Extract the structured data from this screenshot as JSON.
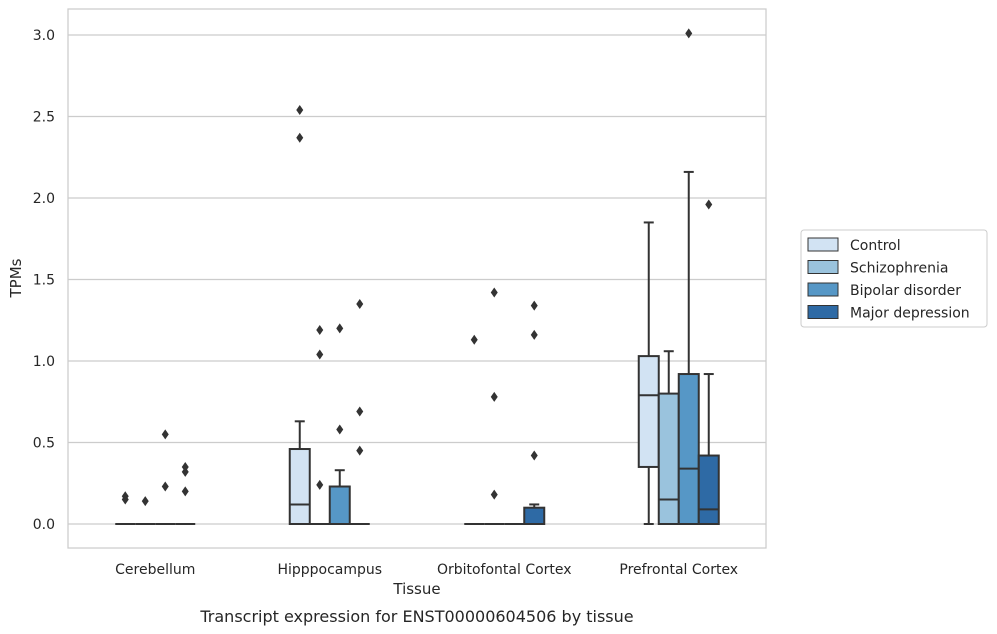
{
  "chart_data": {
    "type": "box",
    "title": "",
    "caption": "Transcript expression for ENST00000604506 by tissue",
    "xlabel": "Tissue",
    "ylabel": "TPMs",
    "ylim": [
      -0.15,
      3.15
    ],
    "yticks": [
      0.0,
      0.5,
      1.0,
      1.5,
      2.0,
      2.5,
      3.0
    ],
    "ytick_labels": [
      "0.0",
      "0.5",
      "1.0",
      "1.5",
      "2.0",
      "2.5",
      "3.0"
    ],
    "grid": "horizontal",
    "legend_position": "right",
    "categories": [
      "Cerebellum",
      "Hipppocampus",
      "Orbitofontal Cortex",
      "Prefrontal Cortex"
    ],
    "series": [
      {
        "name": "Control",
        "color": "#d2e3f3",
        "boxes": [
          {
            "q1": 0,
            "median": 0,
            "q3": 0,
            "whisker_low": 0,
            "whisker_high": 0,
            "outliers": [
              0.15,
              0.17
            ]
          },
          {
            "q1": 0,
            "median": 0.12,
            "q3": 0.46,
            "whisker_low": 0,
            "whisker_high": 0.63,
            "outliers": [
              2.37,
              2.54
            ]
          },
          {
            "q1": 0,
            "median": 0,
            "q3": 0,
            "whisker_low": 0,
            "whisker_high": 0,
            "outliers": [
              1.13
            ]
          },
          {
            "q1": 0.35,
            "median": 0.79,
            "q3": 1.03,
            "whisker_low": 0,
            "whisker_high": 1.85,
            "outliers": []
          }
        ]
      },
      {
        "name": "Schizophrenia",
        "color": "#9ac3dd",
        "boxes": [
          {
            "q1": 0,
            "median": 0,
            "q3": 0,
            "whisker_low": 0,
            "whisker_high": 0,
            "outliers": [
              0.14
            ]
          },
          {
            "q1": 0,
            "median": 0,
            "q3": 0,
            "whisker_low": 0,
            "whisker_high": 0,
            "outliers": [
              0.24,
              1.04,
              1.19
            ]
          },
          {
            "q1": 0,
            "median": 0,
            "q3": 0,
            "whisker_low": 0,
            "whisker_high": 0,
            "outliers": [
              0.18,
              0.78,
              1.42
            ]
          },
          {
            "q1": 0,
            "median": 0.15,
            "q3": 0.8,
            "whisker_low": 0,
            "whisker_high": 1.06,
            "outliers": []
          }
        ]
      },
      {
        "name": "Bipolar disorder",
        "color": "#5697c6",
        "boxes": [
          {
            "q1": 0,
            "median": 0,
            "q3": 0,
            "whisker_low": 0,
            "whisker_high": 0,
            "outliers": [
              0.23,
              0.55
            ]
          },
          {
            "q1": 0,
            "median": 0,
            "q3": 0.23,
            "whisker_low": 0,
            "whisker_high": 0.33,
            "outliers": [
              0.58,
              1.2
            ]
          },
          {
            "q1": 0,
            "median": 0,
            "q3": 0,
            "whisker_low": 0,
            "whisker_high": 0,
            "outliers": []
          },
          {
            "q1": 0,
            "median": 0.34,
            "q3": 0.92,
            "whisker_low": 0,
            "whisker_high": 2.16,
            "outliers": [
              3.01
            ]
          }
        ]
      },
      {
        "name": "Major depression",
        "color": "#2e6aa5",
        "boxes": [
          {
            "q1": 0,
            "median": 0,
            "q3": 0,
            "whisker_low": 0,
            "whisker_high": 0,
            "outliers": [
              0.2,
              0.32,
              0.35
            ]
          },
          {
            "q1": 0,
            "median": 0,
            "q3": 0,
            "whisker_low": 0,
            "whisker_high": 0,
            "outliers": [
              0.45,
              0.69,
              1.35
            ]
          },
          {
            "q1": 0,
            "median": 0,
            "q3": 0.1,
            "whisker_low": 0,
            "whisker_high": 0.12,
            "outliers": [
              0.42,
              1.16,
              1.34
            ]
          },
          {
            "q1": 0,
            "median": 0.09,
            "q3": 0.42,
            "whisker_low": 0,
            "whisker_high": 0.92,
            "outliers": [
              1.96
            ]
          }
        ]
      }
    ]
  }
}
